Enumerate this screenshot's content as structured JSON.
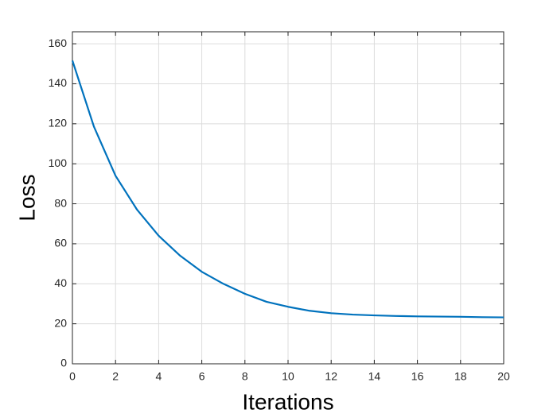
{
  "chart_data": {
    "type": "line",
    "x_label": "Iterations",
    "y_label": "Loss",
    "x": [
      0,
      1,
      2,
      3,
      4,
      5,
      6,
      7,
      8,
      9,
      10,
      11,
      12,
      13,
      14,
      15,
      16,
      17,
      18,
      19,
      20
    ],
    "series": [
      {
        "name": "Loss",
        "color": "#0072bd",
        "values": [
          151.6,
          118.5,
          94,
          77,
          64,
          54,
          46,
          40,
          35,
          31,
          28.5,
          26.5,
          25.3,
          24.6,
          24.2,
          23.9,
          23.7,
          23.6,
          23.5,
          23.3,
          23.2
        ]
      }
    ],
    "xlim": [
      0,
      20
    ],
    "xticks": [
      0,
      2,
      4,
      6,
      8,
      10,
      12,
      14,
      16,
      18,
      20
    ],
    "ylim": [
      0,
      166
    ],
    "yticks": [
      0,
      20,
      40,
      60,
      80,
      100,
      120,
      140,
      160
    ],
    "grid": true
  }
}
